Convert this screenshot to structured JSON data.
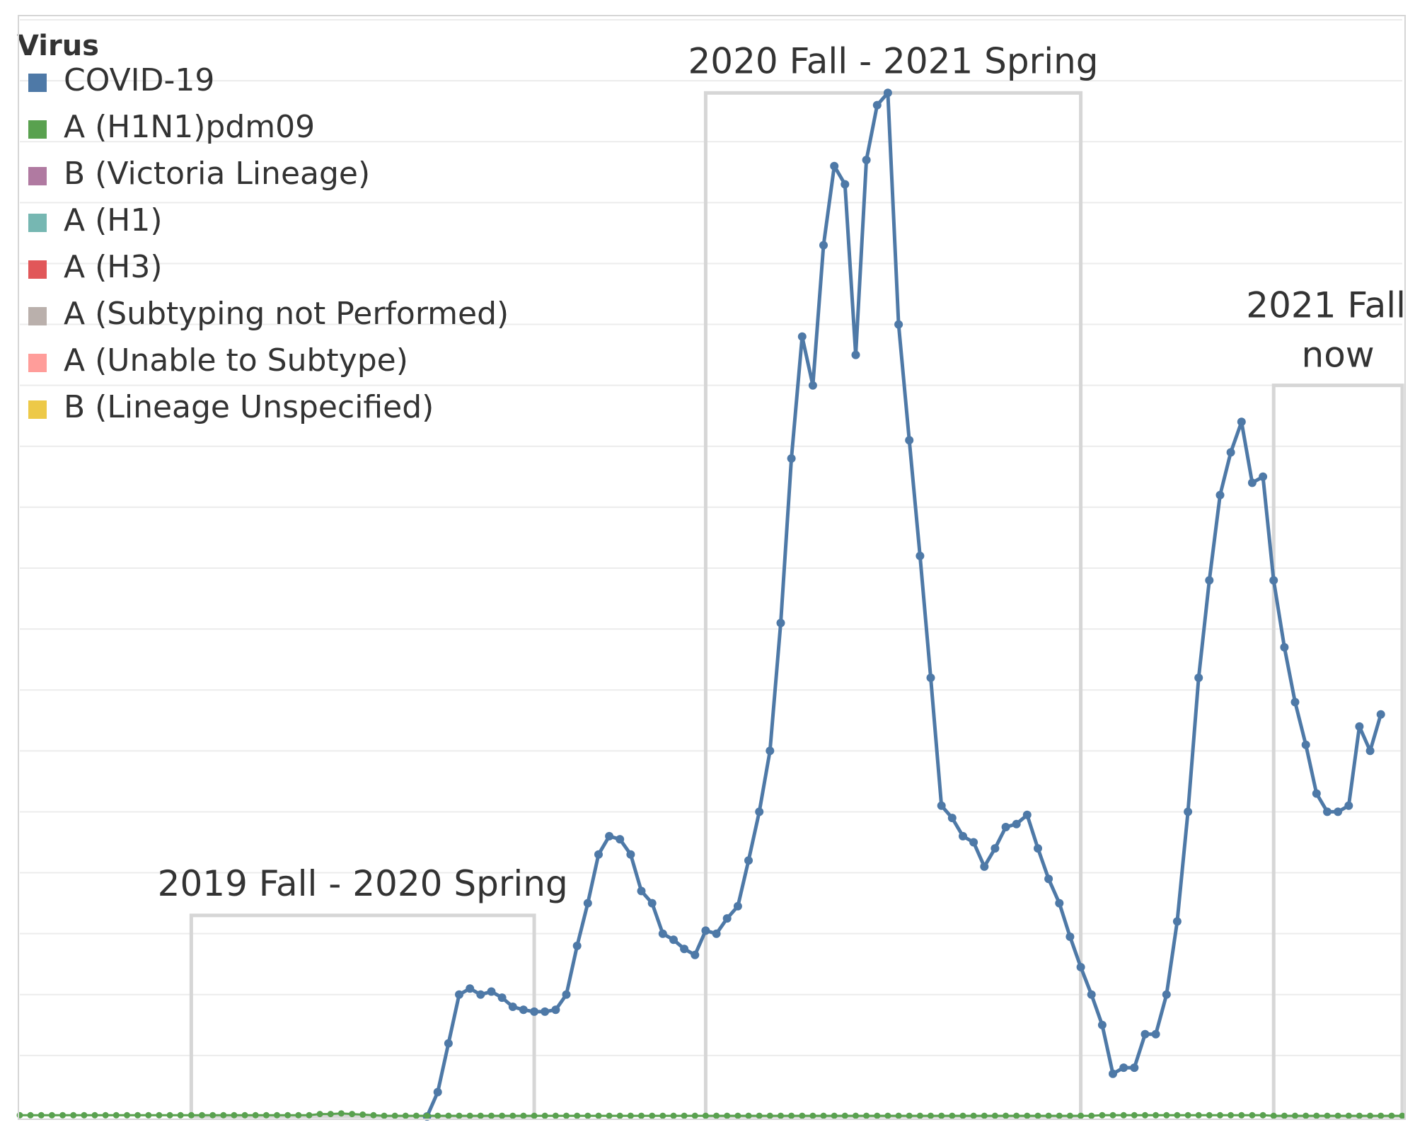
{
  "chart_data": {
    "type": "line",
    "title": "",
    "xlabel": "",
    "ylabel": "",
    "ylim": [
      0,
      18
    ],
    "grid": "horizontal",
    "legend": {
      "title": "Virus",
      "placement": "top-left",
      "entries": [
        {
          "name": "COVID-19",
          "color": "#4e79a7"
        },
        {
          "name": "A (H1N1)pdm09",
          "color": "#59a14f"
        },
        {
          "name": "B (Victoria Lineage)",
          "color": "#b07aa1"
        },
        {
          "name": "A (H1)",
          "color": "#76b7b2"
        },
        {
          "name": "A (H3)",
          "color": "#e15759"
        },
        {
          "name": "A (Subtyping not Performed)",
          "color": "#bab0ac"
        },
        {
          "name": "A (Unable to Subtype)",
          "color": "#ff9d9a"
        },
        {
          "name": "B (Lineage Unspecified)",
          "color": "#edc948"
        }
      ]
    },
    "week_count": 130,
    "annotations": [
      {
        "label": "2019 Fall - 2020 Spring",
        "start_week": 16,
        "end_week": 48,
        "level": 3.3
      },
      {
        "label": "2020 Fall - 2021 Spring",
        "start_week": 64,
        "end_week": 99,
        "level": 16.8
      },
      {
        "label": "2021 Fall - now",
        "start_week": 117,
        "end_week": 129,
        "level": 12.0
      }
    ],
    "series": [
      {
        "name": "COVID-19",
        "color": "#4e79a7",
        "start_week": 38,
        "values": [
          0.0,
          0.4,
          1.2,
          2.0,
          2.1,
          2.0,
          2.05,
          1.95,
          1.8,
          1.75,
          1.72,
          1.72,
          1.75,
          2.0,
          2.8,
          3.5,
          4.3,
          4.6,
          4.55,
          4.3,
          3.7,
          3.5,
          3.0,
          2.9,
          2.75,
          2.65,
          3.05,
          3.0,
          3.25,
          3.45,
          4.2,
          5.0,
          6.0,
          8.1,
          10.8,
          12.8,
          12.0,
          14.3,
          15.6,
          15.3,
          12.5,
          15.7,
          16.6,
          16.8,
          13.0,
          11.1,
          9.2,
          7.2,
          5.1,
          4.9,
          4.6,
          4.5,
          4.1,
          4.4,
          4.75,
          4.8,
          4.95,
          4.4,
          3.9,
          3.5,
          2.95,
          2.45,
          2.0,
          1.5,
          0.7,
          0.8,
          0.8,
          1.35,
          1.35,
          2.0,
          3.2,
          5.0,
          7.2,
          8.8,
          10.2,
          10.9,
          11.4,
          10.4,
          10.5,
          8.8,
          7.7,
          6.8,
          6.1,
          5.3,
          5.0,
          5.0,
          5.1,
          6.4,
          6.0,
          6.6
        ]
      },
      {
        "name": "A (H1N1)pdm09",
        "color": "#59a14f",
        "start_week": 0,
        "values": [
          0.02,
          0.02,
          0.02,
          0.02,
          0.02,
          0.02,
          0.02,
          0.02,
          0.02,
          0.02,
          0.02,
          0.02,
          0.02,
          0.02,
          0.02,
          0.02,
          0.02,
          0.02,
          0.02,
          0.02,
          0.02,
          0.02,
          0.02,
          0.02,
          0.02,
          0.02,
          0.02,
          0.02,
          0.04,
          0.04,
          0.05,
          0.04,
          0.03,
          0.02,
          0.01,
          0.01,
          0.01,
          0.01,
          0.01,
          0.01,
          0.01,
          0.01,
          0.01,
          0.01,
          0.01,
          0.01,
          0.01,
          0.01,
          0.01,
          0.01,
          0.01,
          0.01,
          0.01,
          0.01,
          0.01,
          0.01,
          0.01,
          0.01,
          0.01,
          0.01,
          0.01,
          0.01,
          0.01,
          0.01,
          0.01,
          0.01,
          0.01,
          0.01,
          0.01,
          0.01,
          0.01,
          0.01,
          0.01,
          0.01,
          0.01,
          0.01,
          0.01,
          0.01,
          0.01,
          0.01,
          0.01,
          0.01,
          0.01,
          0.01,
          0.01,
          0.01,
          0.01,
          0.01,
          0.01,
          0.01,
          0.01,
          0.01,
          0.01,
          0.01,
          0.01,
          0.01,
          0.01,
          0.01,
          0.01,
          0.01,
          0.01,
          0.02,
          0.02,
          0.02,
          0.02,
          0.02,
          0.02,
          0.02,
          0.02,
          0.02,
          0.02,
          0.02,
          0.02,
          0.02,
          0.02,
          0.02,
          0.02,
          0.01,
          0.01,
          0.01,
          0.01,
          0.01,
          0.01,
          0.01,
          0.01,
          0.01,
          0.01,
          0.01,
          0.01,
          0.01
        ]
      }
    ]
  }
}
